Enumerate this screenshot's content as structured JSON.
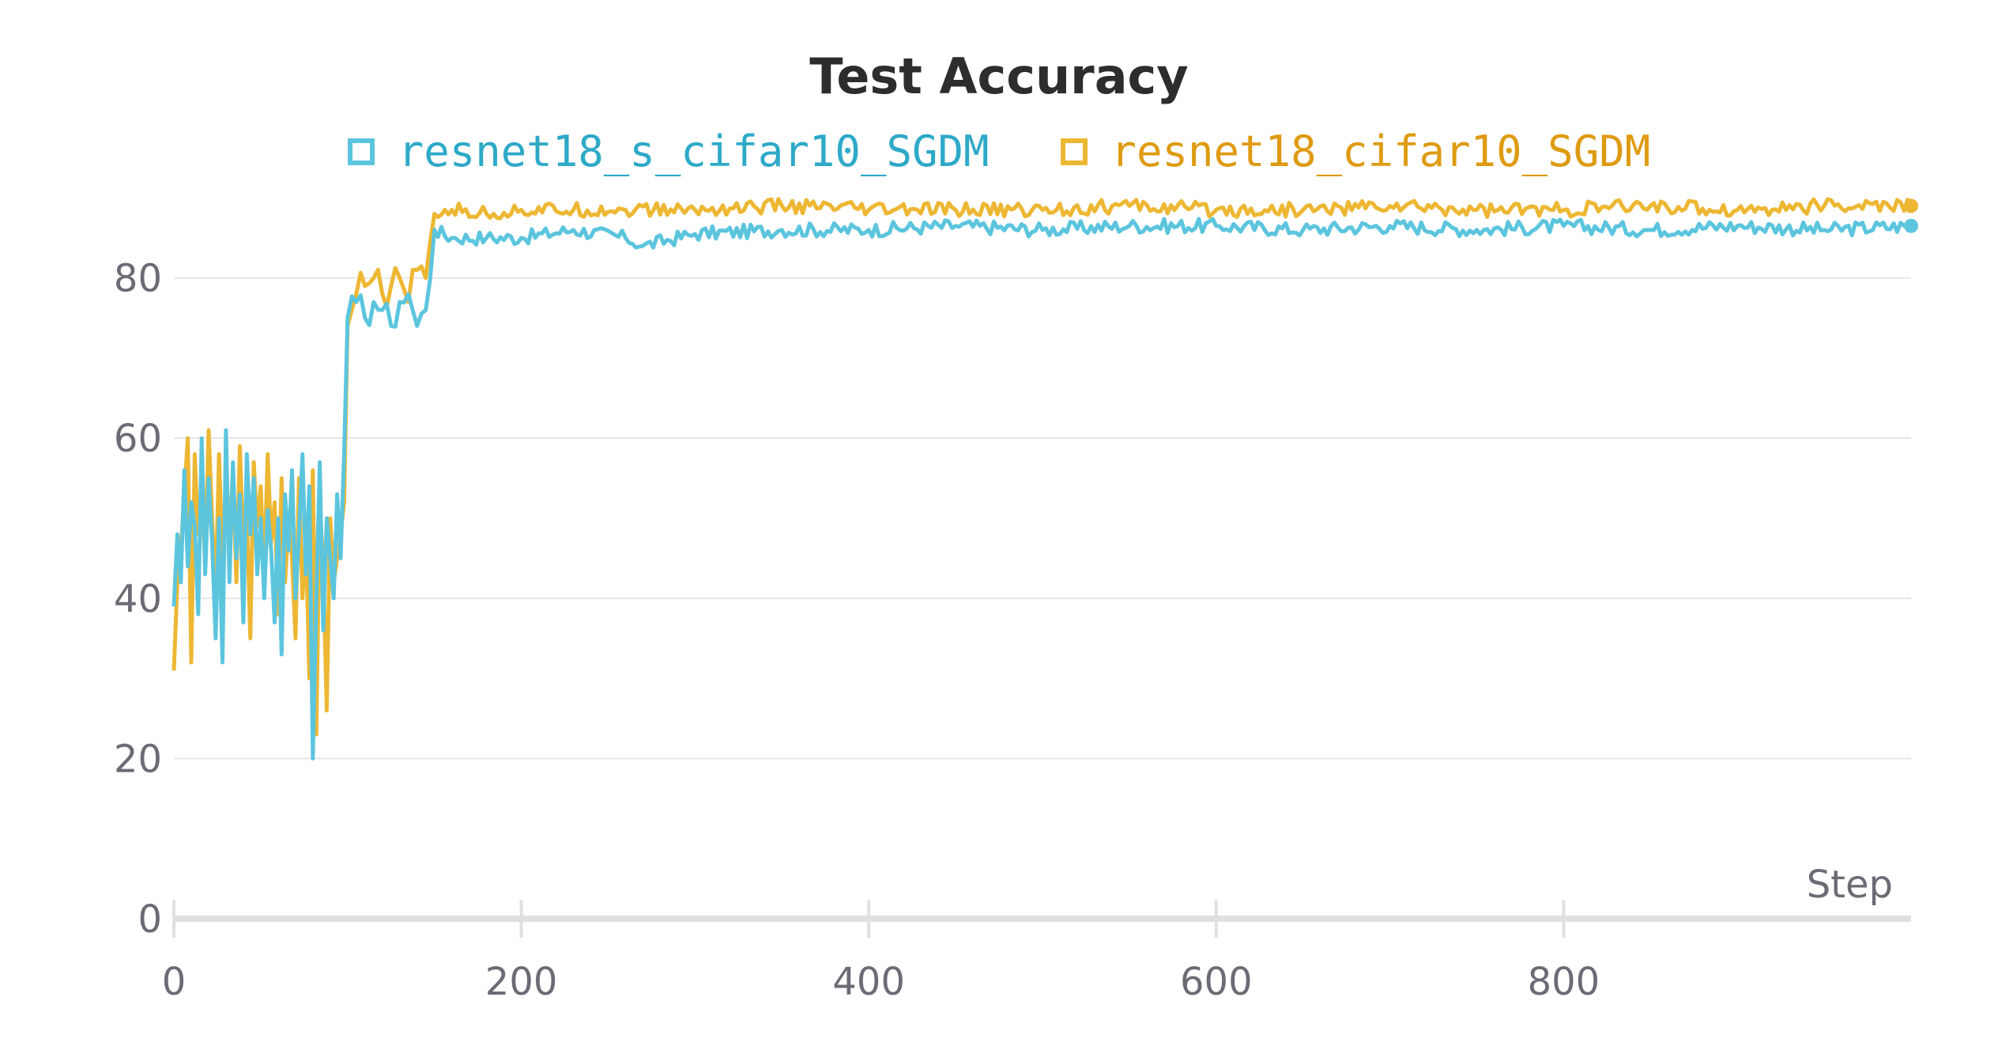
{
  "chart_data": {
    "type": "line",
    "title": "Test Accuracy",
    "xlabel": "Step",
    "ylabel": "",
    "xlim": [
      0,
      1000
    ],
    "ylim": [
      0,
      92
    ],
    "x_ticks": [
      0,
      200,
      400,
      600,
      800
    ],
    "y_ticks": [
      0,
      20,
      40,
      60,
      80
    ],
    "grid": true,
    "legend_position": "top-center",
    "series": [
      {
        "name": "resnet18_s_cifar10_SGDM",
        "color": "#5cc5de",
        "x": [
          0,
          2,
          4,
          6,
          8,
          10,
          12,
          14,
          16,
          18,
          20,
          22,
          24,
          26,
          28,
          30,
          32,
          34,
          36,
          38,
          40,
          42,
          44,
          46,
          48,
          50,
          52,
          54,
          56,
          58,
          60,
          62,
          64,
          66,
          68,
          70,
          72,
          74,
          76,
          78,
          80,
          82,
          84,
          86,
          88,
          90,
          92,
          94,
          96,
          98,
          100,
          105,
          110,
          115,
          120,
          125,
          130,
          135,
          140,
          145,
          150,
          160,
          180,
          200,
          230,
          260,
          270,
          300,
          350,
          400,
          450,
          500,
          550,
          600,
          650,
          700,
          750,
          800,
          850,
          900,
          950,
          1000
        ],
        "y": [
          39,
          48,
          42,
          56,
          44,
          52,
          49,
          38,
          60,
          43,
          55,
          47,
          35,
          50,
          32,
          61,
          42,
          57,
          45,
          53,
          37,
          58,
          48,
          55,
          43,
          50,
          40,
          51,
          46,
          37,
          50,
          33,
          53,
          46,
          56,
          40,
          48,
          58,
          43,
          54,
          20,
          40,
          57,
          36,
          50,
          45,
          40,
          53,
          45,
          58,
          75,
          77,
          75,
          77,
          76,
          74,
          77,
          78,
          74,
          76,
          86,
          85,
          85,
          85,
          86,
          85,
          84,
          85.5,
          86,
          86,
          86.5,
          86,
          86.5,
          86.5,
          86,
          86.5,
          86,
          86.5,
          86,
          86.5,
          86,
          86.5
        ]
      },
      {
        "name": "resnet18_cifar10_SGDM",
        "color": "#edb733",
        "x": [
          0,
          2,
          4,
          6,
          8,
          10,
          12,
          14,
          16,
          18,
          20,
          22,
          24,
          26,
          28,
          30,
          32,
          34,
          36,
          38,
          40,
          42,
          44,
          46,
          48,
          50,
          52,
          54,
          56,
          58,
          60,
          62,
          64,
          66,
          68,
          70,
          72,
          74,
          76,
          78,
          80,
          82,
          84,
          86,
          88,
          90,
          92,
          94,
          96,
          98,
          100,
          105,
          110,
          115,
          120,
          125,
          130,
          135,
          140,
          145,
          150,
          160,
          180,
          200,
          230,
          260,
          300,
          350,
          400,
          450,
          500,
          550,
          600,
          650,
          700,
          750,
          800,
          850,
          900,
          950,
          1000
        ],
        "y": [
          31,
          42,
          46,
          53,
          60,
          32,
          58,
          48,
          54,
          44,
          61,
          50,
          40,
          58,
          45,
          52,
          47,
          56,
          42,
          59,
          46,
          51,
          35,
          57,
          49,
          54,
          43,
          58,
          47,
          52,
          38,
          55,
          42,
          50,
          45,
          35,
          55,
          40,
          48,
          30,
          56,
          23,
          52,
          44,
          26,
          50,
          42,
          45,
          48,
          52,
          74,
          78,
          79,
          80,
          78,
          79,
          80,
          77,
          81,
          80,
          88,
          88.5,
          88,
          88.5,
          88.5,
          88.5,
          88.5,
          89,
          88.5,
          88.5,
          88.5,
          89,
          88.5,
          88.5,
          89,
          88.5,
          88.5,
          89,
          88.5,
          89,
          89
        ]
      }
    ]
  }
}
